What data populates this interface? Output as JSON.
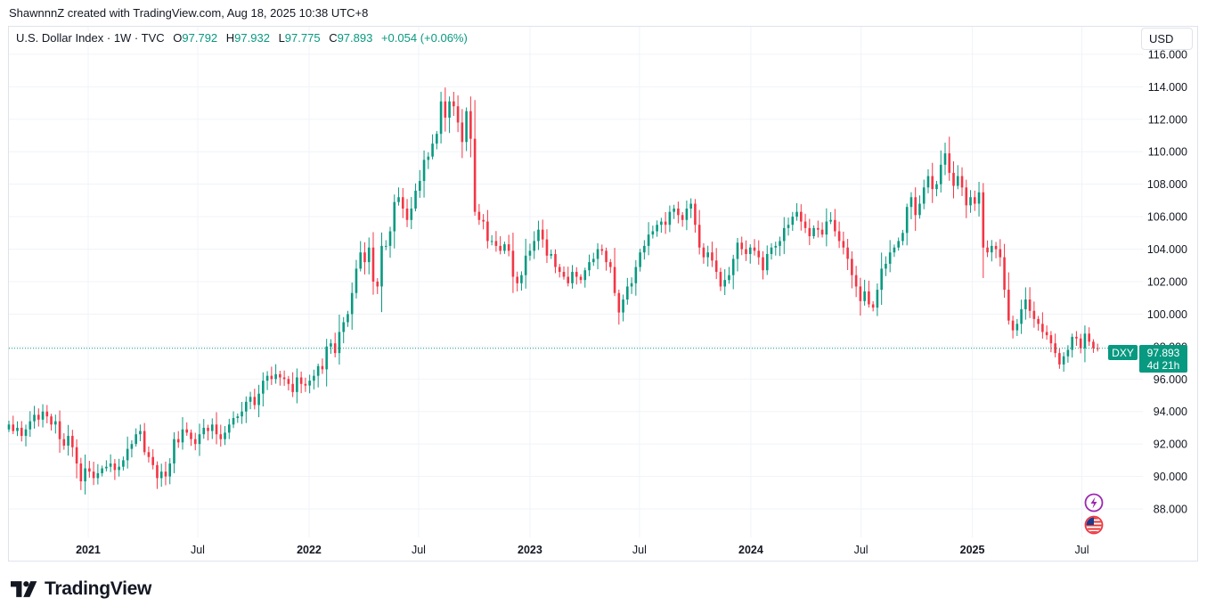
{
  "header": {
    "caption": "ShawnnnZ created with TradingView.com, Aug 18, 2025 10:38 UTC+8"
  },
  "legend": {
    "symbol": "U.S. Dollar Index · 1W · TVC",
    "open_label": "O",
    "open": "97.792",
    "high_label": "H",
    "high": "97.932",
    "low_label": "L",
    "low": "97.775",
    "close_label": "C",
    "close": "97.893",
    "change": "+0.054 (+0.06%)"
  },
  "currency_button": {
    "label": "USD"
  },
  "price_badge": {
    "ticker": "DXY",
    "price": "97.893",
    "countdown": "4d 21h"
  },
  "colors": {
    "up": "#089981",
    "down": "#f23645",
    "grid": "#f0f3fa",
    "badge": "#089981",
    "text": "#131722"
  },
  "icons": {
    "flash": "lightning-icon",
    "flag": "us-flag-icon",
    "logo": "tradingview-logo-icon"
  },
  "brand": {
    "name": "TradingView"
  },
  "chart_data": {
    "type": "candlestick",
    "interval": "1W",
    "ylim": [
      86.3,
      116.6
    ],
    "xlim": [
      "2020-08-23",
      "2025-09-28"
    ],
    "y_ticks": [
      "88.000",
      "90.000",
      "92.000",
      "94.000",
      "96.000",
      "98.000",
      "100.000",
      "102.000",
      "104.000",
      "106.000",
      "108.000",
      "110.000",
      "112.000",
      "114.000",
      "116.000"
    ],
    "x_ticks": [
      {
        "label": "2021",
        "date": "2021-01-01",
        "bold": true
      },
      {
        "label": "Jul",
        "date": "2021-07-01",
        "bold": false
      },
      {
        "label": "2022",
        "date": "2022-01-01",
        "bold": true
      },
      {
        "label": "Jul",
        "date": "2022-07-01",
        "bold": false
      },
      {
        "label": "2023",
        "date": "2023-01-01",
        "bold": true
      },
      {
        "label": "Jul",
        "date": "2023-07-01",
        "bold": false
      },
      {
        "label": "2024",
        "date": "2024-01-01",
        "bold": true
      },
      {
        "label": "Jul",
        "date": "2024-07-01",
        "bold": false
      },
      {
        "label": "2025",
        "date": "2025-01-01",
        "bold": true
      },
      {
        "label": "Jul",
        "date": "2025-07-01",
        "bold": false
      }
    ],
    "last_close": 97.893,
    "first_week": "2020-08-23",
    "closes": [
      93.2,
      92.8,
      93.0,
      92.5,
      92.9,
      93.4,
      93.8,
      93.5,
      94.0,
      93.7,
      93.2,
      93.4,
      92.3,
      91.9,
      92.5,
      91.8,
      90.8,
      89.7,
      90.5,
      90.3,
      89.9,
      90.2,
      90.5,
      90.6,
      90.8,
      90.4,
      90.6,
      91.0,
      91.7,
      92.0,
      92.6,
      92.8,
      91.5,
      91.2,
      90.7,
      89.9,
      90.3,
      90.0,
      90.8,
      92.3,
      92.1,
      92.9,
      92.7,
      92.3,
      92.0,
      92.6,
      93.0,
      92.8,
      93.2,
      92.6,
      92.3,
      92.7,
      93.2,
      93.6,
      93.7,
      94.0,
      94.6,
      94.9,
      94.4,
      95.1,
      95.9,
      96.2,
      96.0,
      96.3,
      96.1,
      96.0,
      95.7,
      95.2,
      96.1,
      95.7,
      95.6,
      95.9,
      96.2,
      96.8,
      96.6,
      98.0,
      98.2,
      97.6,
      98.9,
      99.5,
      100.0,
      101.3,
      102.8,
      103.8,
      103.2,
      104.1,
      102.0,
      101.7,
      104.2,
      104.2,
      105.1,
      106.9,
      107.2,
      106.5,
      105.8,
      106.5,
      107.6,
      108.2,
      109.5,
      109.7,
      110.5,
      111.1,
      113.1,
      112.1,
      113.1,
      112.8,
      111.8,
      110.6,
      112.5,
      110.8,
      106.3,
      105.8,
      105.7,
      104.5,
      104.5,
      104.2,
      103.9,
      104.3,
      103.9,
      102.3,
      101.9,
      102.4,
      103.6,
      103.9,
      104.5,
      105.2,
      104.6,
      103.6,
      103.7,
      102.9,
      102.6,
      102.3,
      101.9,
      102.6,
      102.3,
      102.1,
      102.7,
      103.2,
      103.4,
      104.0,
      103.9,
      103.2,
      102.9,
      101.3,
      100.1,
      100.9,
      101.7,
      101.9,
      102.9,
      103.8,
      104.2,
      104.9,
      105.1,
      105.5,
      105.7,
      105.5,
      106.3,
      106.5,
      106.1,
      105.8,
      106.5,
      106.8,
      105.5,
      104.1,
      103.5,
      103.8,
      103.3,
      102.6,
      101.7,
      102.1,
      102.4,
      103.4,
      104.4,
      104.0,
      103.7,
      104.1,
      103.9,
      103.5,
      102.7,
      103.7,
      104.1,
      104.2,
      104.5,
      105.3,
      105.5,
      106.0,
      106.3,
      105.7,
      105.3,
      104.8,
      105.3,
      105.2,
      104.9,
      105.7,
      105.8,
      105.1,
      104.5,
      104.1,
      103.4,
      102.4,
      101.7,
      100.8,
      101.4,
      100.6,
      100.4,
      101.5,
      102.8,
      103.1,
      103.8,
      104.1,
      104.5,
      105.0,
      106.6,
      107.2,
      106.1,
      106.8,
      107.8,
      108.5,
      107.7,
      108.0,
      109.2,
      109.9,
      108.7,
      107.9,
      108.5,
      107.8,
      106.7,
      107.2,
      106.8,
      107.5,
      104.1,
      103.8,
      104.2,
      104.0,
      103.5,
      101.5,
      99.6,
      99.0,
      99.4,
      100.3,
      100.9,
      100.2,
      99.7,
      99.4,
      98.9,
      98.7,
      98.2,
      97.6,
      96.9,
      97.4,
      97.8,
      98.6,
      98.5,
      97.9,
      98.8,
      98.3,
      97.9,
      97.893
    ]
  }
}
